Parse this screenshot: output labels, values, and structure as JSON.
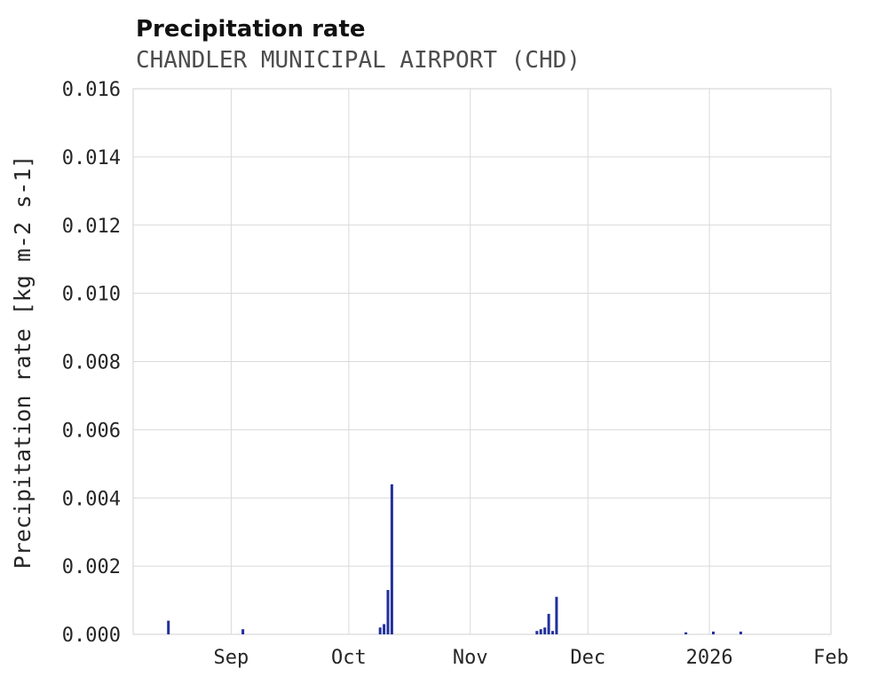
{
  "chart_data": {
    "type": "bar",
    "title": "Precipitation rate",
    "subtitle": "CHANDLER MUNICIPAL AIRPORT (CHD)",
    "ylabel": "Precipitation rate [kg m-2 s-1]",
    "xlabel": "",
    "ylim": [
      0,
      0.016
    ],
    "ytick_values": [
      0,
      0.002,
      0.004,
      0.006,
      0.008,
      0.01,
      0.012,
      0.014,
      0.016
    ],
    "ytick_labels": [
      "0.000",
      "0.002",
      "0.004",
      "0.006",
      "0.008",
      "0.010",
      "0.012",
      "0.014",
      "0.016"
    ],
    "x_range": [
      "2025-08-07",
      "2026-02-01"
    ],
    "xticks": [
      {
        "date": "2025-09-01",
        "label": "Sep"
      },
      {
        "date": "2025-10-01",
        "label": "Oct"
      },
      {
        "date": "2025-11-01",
        "label": "Nov"
      },
      {
        "date": "2025-12-01",
        "label": "Dec"
      },
      {
        "date": "2026-01-01",
        "label": "2026"
      },
      {
        "date": "2026-02-01",
        "label": "Feb"
      }
    ],
    "grid": true,
    "legend_position": "none",
    "series": [
      {
        "name": "Precipitation rate",
        "color": "#22309c",
        "points": [
          {
            "date": "2025-08-16",
            "value": 0.0004
          },
          {
            "date": "2025-09-04",
            "value": 0.00015
          },
          {
            "date": "2025-10-09",
            "value": 0.0002
          },
          {
            "date": "2025-10-10",
            "value": 0.0003
          },
          {
            "date": "2025-10-11",
            "value": 0.0013
          },
          {
            "date": "2025-10-12",
            "value": 0.0044
          },
          {
            "date": "2025-11-18",
            "value": 0.0001
          },
          {
            "date": "2025-11-19",
            "value": 0.00015
          },
          {
            "date": "2025-11-20",
            "value": 0.0002
          },
          {
            "date": "2025-11-21",
            "value": 0.0006
          },
          {
            "date": "2025-11-22",
            "value": 0.0001
          },
          {
            "date": "2025-11-23",
            "value": 0.0011
          },
          {
            "date": "2025-12-26",
            "value": 6e-05
          },
          {
            "date": "2026-01-02",
            "value": 8e-05
          },
          {
            "date": "2026-01-09",
            "value": 8e-05
          }
        ]
      }
    ],
    "colors": {
      "series": "#22309c",
      "grid": "#d9d9d9",
      "title": "#111111",
      "subtitle": "#4d4d4d",
      "tick_label": "#262626",
      "background": "#ffffff"
    }
  }
}
